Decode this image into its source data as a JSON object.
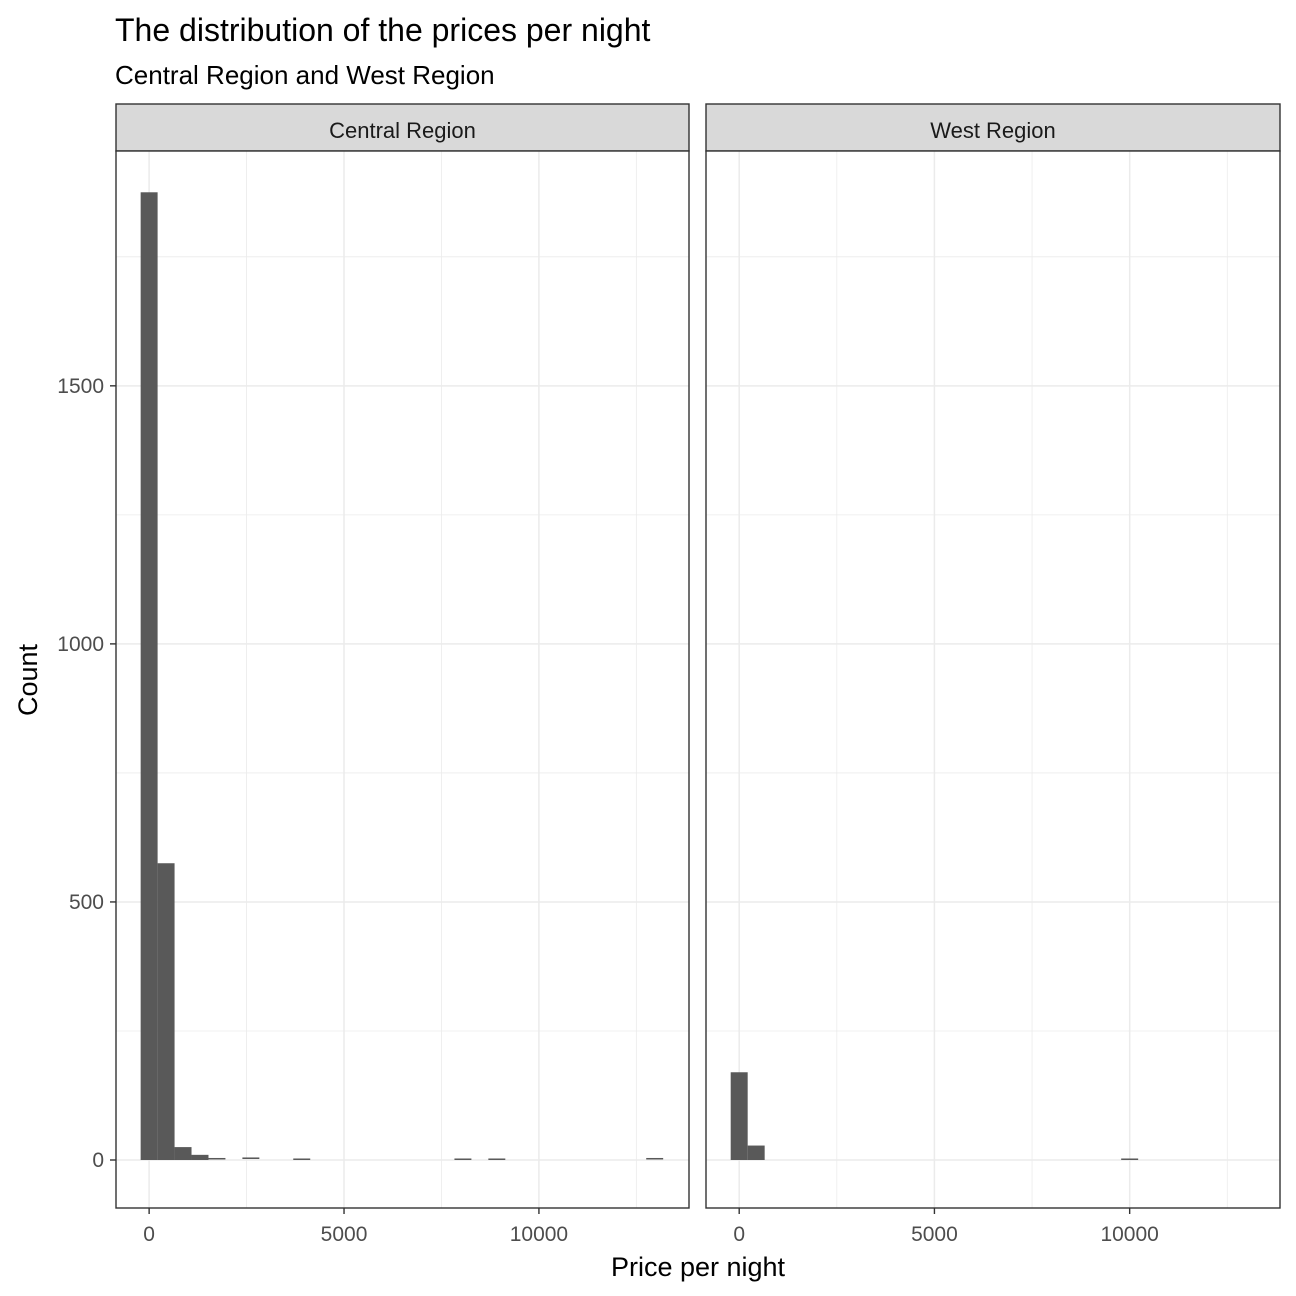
{
  "chart_data": {
    "type": "bar",
    "title": "The distribution of the prices per night",
    "subtitle": "Central Region and West Region",
    "xlabel": "Price per night",
    "ylabel": "Count",
    "xlim": [
      -850,
      13850
    ],
    "ylim": [
      -93,
      1955
    ],
    "x_ticks": [
      0,
      5000,
      10000
    ],
    "x_tick_labels": [
      "0",
      "5000",
      "10000"
    ],
    "y_ticks": [
      0,
      500,
      1000,
      1500
    ],
    "y_tick_labels": [
      "0",
      "500",
      "1000",
      "1500"
    ],
    "grid": true,
    "bin_width": 435,
    "bar_color": "#595959",
    "panel_border_color": "#333333",
    "strip_fill": "#d9d9d9",
    "grid_color": "#ebebeb",
    "panels": [
      {
        "name": "Central Region",
        "bins": [
          {
            "x": 0,
            "count": 1875
          },
          {
            "x": 435,
            "count": 575
          },
          {
            "x": 870,
            "count": 25
          },
          {
            "x": 1305,
            "count": 10
          },
          {
            "x": 1740,
            "count": 2
          },
          {
            "x": 2610,
            "count": 3
          },
          {
            "x": 3915,
            "count": 1
          },
          {
            "x": 8050,
            "count": 1
          },
          {
            "x": 8920,
            "count": 1
          },
          {
            "x": 12970,
            "count": 2
          }
        ]
      },
      {
        "name": "West Region",
        "bins": [
          {
            "x": 0,
            "count": 170
          },
          {
            "x": 435,
            "count": 28
          },
          {
            "x": 10000,
            "count": 1
          }
        ]
      }
    ]
  }
}
